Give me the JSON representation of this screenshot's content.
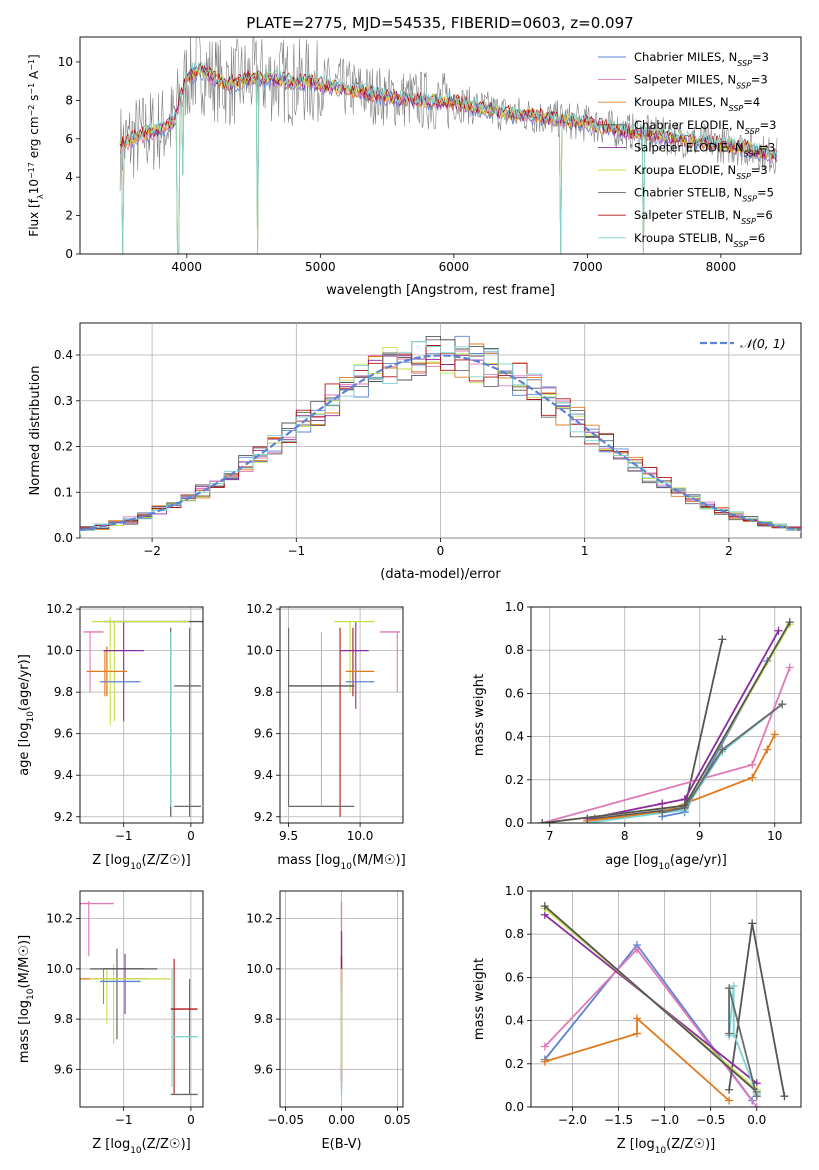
{
  "figure_title": "PLATE=2775, MJD=54535, FIBERID=0603, z=0.097",
  "colors": {
    "chabrier_miles": "#5b84d6",
    "salpeter_miles": "#e07ab7",
    "kroupa_miles": "#e07a1e",
    "chabrier_elodie": "#555555",
    "salpeter_elodie": "#8a2c9c",
    "kroupa_elodie": "#c7e04a",
    "chabrier_stelib": "#6a6a6a",
    "salpeter_stelib": "#b01515",
    "kroupa_stelib": "#7ed4d4",
    "normal_curve": "#5b84d6"
  },
  "chart_data": [
    {
      "id": "spectrum",
      "type": "line",
      "title": "PLATE=2775, MJD=54535, FIBERID=0603, z=0.097",
      "xlabel": "wavelength [Angstrom, rest frame]",
      "ylabel": "Flux [f_λ10^-17 erg cm^-2 s^-1 A^-1]",
      "xlim": [
        3200,
        8600
      ],
      "ylim": [
        0,
        11.3
      ],
      "xticks": [
        4000,
        5000,
        6000,
        7000,
        8000
      ],
      "yticks": [
        0,
        2,
        4,
        6,
        8,
        10
      ],
      "grid": false,
      "legend_position": "top-right",
      "legend": [
        {
          "main": "Chabrier MILES, N",
          "sub": "SSP",
          "tail": "=3",
          "color_key": "chabrier_miles"
        },
        {
          "main": "Salpeter MILES, N",
          "sub": "SSP",
          "tail": "=3",
          "color_key": "salpeter_miles"
        },
        {
          "main": "Kroupa MILES, N",
          "sub": "SSP",
          "tail": "=4",
          "color_key": "kroupa_miles"
        },
        {
          "main": "Chabrier ELODIE, N",
          "sub": "SSP",
          "tail": "=3",
          "color_key": "chabrier_elodie"
        },
        {
          "main": "Salpeter ELODIE, N",
          "sub": "SSP",
          "tail": "=3",
          "color_key": "salpeter_elodie"
        },
        {
          "main": "Kroupa ELODIE, N",
          "sub": "SSP",
          "tail": "=3",
          "color_key": "kroupa_elodie"
        },
        {
          "main": "Chabrier STELIB, N",
          "sub": "SSP",
          "tail": "=5",
          "color_key": "chabrier_stelib"
        },
        {
          "main": "Salpeter STELIB, N",
          "sub": "SSP",
          "tail": "=6",
          "color_key": "salpeter_stelib"
        },
        {
          "main": "Kroupa STELIB, N",
          "sub": "SSP",
          "tail": "=6",
          "color_key": "kroupa_stelib"
        }
      ],
      "model_curve": {
        "x": [
          3500,
          3600,
          3700,
          3800,
          3900,
          4000,
          4100,
          4200,
          4300,
          4400,
          4500,
          4600,
          4700,
          4800,
          4900,
          5000,
          5200,
          5400,
          5600,
          5800,
          6000,
          6200,
          6400,
          6600,
          6800,
          7000,
          7200,
          7400,
          7600,
          7800,
          8000,
          8200,
          8400
        ],
        "y": [
          5.6,
          6.0,
          6.3,
          6.5,
          6.9,
          9.2,
          9.6,
          9.2,
          8.8,
          9.0,
          9.2,
          9.1,
          9.1,
          8.9,
          9.0,
          8.8,
          8.6,
          8.3,
          8.1,
          8.0,
          7.9,
          7.6,
          7.3,
          7.2,
          7.0,
          6.8,
          6.5,
          6.3,
          6.1,
          5.9,
          5.7,
          5.5,
          5.1
        ]
      },
      "absorption_dips": [
        {
          "x": 3520,
          "y": 0
        },
        {
          "x": 3935,
          "y": 0
        },
        {
          "x": 3970,
          "y": 4.1
        },
        {
          "x": 4530,
          "y": 0
        },
        {
          "x": 6800,
          "y": 0
        },
        {
          "x": 7420,
          "y": 0
        }
      ]
    },
    {
      "id": "residuals",
      "type": "step",
      "xlabel": "(data-model)/error",
      "ylabel": "Normed distribution",
      "xlim": [
        -2.5,
        2.5
      ],
      "ylim": [
        0,
        0.47
      ],
      "xticks": [
        -2,
        -1,
        0,
        1,
        2
      ],
      "yticks": [
        0,
        0.1,
        0.2,
        0.3,
        0.4
      ],
      "grid": true,
      "legend_position": "top-right",
      "legend_label": "𝒩(0, 1)",
      "normal_mu": 0,
      "normal_sigma": 1
    },
    {
      "id": "age-vs-Z",
      "type": "errorbar",
      "xlabel": "Z [log10(Z/Z☉)]",
      "ylabel": "age [log10(age/yr)]",
      "xlim": [
        -1.65,
        0.18
      ],
      "ylim": [
        9.17,
        10.21
      ],
      "xticks": [
        -1,
        0
      ],
      "yticks": [
        9.2,
        9.4,
        9.6,
        9.8,
        10.0,
        10.2
      ],
      "grid": true,
      "points": [
        {
          "x": -1.05,
          "xerr": 0.3,
          "y": 9.85,
          "yerr": 0.0,
          "color_key": "chabrier_miles"
        },
        {
          "x": -1.45,
          "xerr": 0.15,
          "y": 10.09,
          "yerr": 0.0,
          "color_key": "salpeter_miles"
        },
        {
          "x": -1.25,
          "xerr": 0.3,
          "y": 9.9,
          "yerr": 0.12,
          "color_key": "kroupa_miles"
        },
        {
          "x": -0.5,
          "xerr": 0.8,
          "y": 10.14,
          "yerr": 0.0,
          "color_key": "chabrier_elodie"
        },
        {
          "x": -1.0,
          "xerr": 0.3,
          "y": 10.0,
          "yerr": 0.0,
          "color_key": "salpeter_elodie"
        },
        {
          "x": -0.75,
          "xerr": 0.72,
          "y": 10.14,
          "yerr": 0.0,
          "color_key": "kroupa_elodie"
        },
        {
          "x": -0.05,
          "xerr": 0.2,
          "y": 9.83,
          "yerr": 0.0,
          "color_key": "chabrier_stelib"
        },
        {
          "x": -0.05,
          "xerr": 0.2,
          "y": 9.25,
          "yerr": 0.0,
          "color_key": "chabrier_stelib"
        },
        {
          "x": -0.3,
          "xerr": 0.0,
          "y": 9.67,
          "yerr": 0.42,
          "color_key": "kroupa_stelib"
        }
      ],
      "vlines": [
        {
          "x": -0.02,
          "y0": 9.2,
          "y1": 10.11,
          "color_key": "chabrier_stelib"
        },
        {
          "x": -1.14,
          "y0": 9.66,
          "y1": 10.14,
          "color_key": "kroupa_elodie"
        },
        {
          "x": -1.0,
          "y0": 9.66,
          "y1": 10.14,
          "color_key": "salpeter_elodie"
        },
        {
          "x": -1.28,
          "y0": 9.78,
          "y1": 10.0,
          "color_key": "kroupa_miles"
        },
        {
          "x": -1.5,
          "y0": 9.8,
          "y1": 10.09,
          "color_key": "salpeter_miles"
        },
        {
          "x": -1.2,
          "y0": 9.64,
          "y1": 10.16,
          "color_key": "kroupa_elodie"
        },
        {
          "x": -0.3,
          "y0": 9.21,
          "y1": 10.09,
          "color_key": "kroupa_stelib"
        },
        {
          "x": -0.3,
          "y0": 9.2,
          "y1": 10.11,
          "color_key": "chabrier_elodie"
        }
      ]
    },
    {
      "id": "age-vs-mass",
      "type": "errorbar",
      "xlabel": "mass [log10(M/M☉)]",
      "ylabel": "",
      "xlim": [
        9.44,
        10.3
      ],
      "ylim": [
        9.17,
        10.21
      ],
      "xticks": [
        9.5,
        10.0
      ],
      "yticks": [
        9.2,
        9.4,
        9.6,
        9.8,
        10.0,
        10.2
      ],
      "grid": true,
      "points": [
        {
          "x": 10.0,
          "xerr": 0.1,
          "y": 9.85,
          "yerr": 0.0,
          "color_key": "chabrier_miles"
        },
        {
          "x": 10.21,
          "xerr": 0.07,
          "y": 10.09,
          "yerr": 0.0,
          "color_key": "salpeter_miles"
        },
        {
          "x": 10.0,
          "xerr": 0.1,
          "y": 9.9,
          "yerr": 0.0,
          "color_key": "kroupa_miles"
        },
        {
          "x": 9.96,
          "xerr": 0.1,
          "y": 10.0,
          "yerr": 0.0,
          "color_key": "salpeter_elodie"
        },
        {
          "x": 9.96,
          "xerr": 0.14,
          "y": 10.14,
          "yerr": 0.0,
          "color_key": "kroupa_elodie"
        },
        {
          "x": 9.73,
          "xerr": 0.23,
          "y": 9.83,
          "yerr": 0.0,
          "color_key": "chabrier_elodie"
        },
        {
          "x": 9.73,
          "xerr": 0.23,
          "y": 9.25,
          "yerr": 0.0,
          "color_key": "chabrier_stelib"
        }
      ],
      "vlines": [
        {
          "x": 9.5,
          "y0": 9.25,
          "y1": 10.11,
          "color_key": "chabrier_stelib"
        },
        {
          "x": 9.73,
          "y0": 9.25,
          "y1": 10.09,
          "color_key": "kroupa_stelib"
        },
        {
          "x": 9.86,
          "y0": 9.2,
          "y1": 10.11,
          "color_key": "salpeter_stelib"
        },
        {
          "x": 9.93,
          "y0": 9.8,
          "y1": 10.14,
          "color_key": "kroupa_elodie"
        },
        {
          "x": 9.95,
          "y0": 9.78,
          "y1": 10.11,
          "color_key": "salpeter_stelib"
        },
        {
          "x": 9.97,
          "y0": 9.72,
          "y1": 10.14,
          "color_key": "salpeter_elodie"
        },
        {
          "x": 10.26,
          "y0": 9.8,
          "y1": 10.09,
          "color_key": "salpeter_miles"
        }
      ]
    },
    {
      "id": "weight-vs-age",
      "type": "line",
      "xlabel": "age [log10(age/yr)]",
      "ylabel": "mass weight",
      "xlim": [
        6.75,
        10.35
      ],
      "ylim": [
        0,
        1
      ],
      "xticks": [
        7,
        8,
        9,
        10
      ],
      "yticks": [
        0,
        0.2,
        0.4,
        0.6,
        0.8,
        1.0
      ],
      "grid": true,
      "series": [
        {
          "color_key": "chabrier_elodie",
          "x": [
            7.6,
            8.8,
            9.3
          ],
          "y": [
            0.02,
            0.07,
            0.85
          ]
        },
        {
          "color_key": "salpeter_miles",
          "x": [
            6.9,
            9.7,
            10.2
          ],
          "y": [
            0.0,
            0.27,
            0.72
          ]
        },
        {
          "color_key": "kroupa_miles",
          "x": [
            7.5,
            8.5,
            9.7,
            9.9,
            10.0
          ],
          "y": [
            0.01,
            0.05,
            0.21,
            0.34,
            0.41
          ]
        },
        {
          "color_key": "chabrier_miles",
          "x": [
            8.5,
            8.8,
            9.9
          ],
          "y": [
            0.03,
            0.05,
            0.75
          ]
        },
        {
          "color_key": "kroupa_stelib",
          "x": [
            7.5,
            8.8,
            9.3,
            10.1
          ],
          "y": [
            0.0,
            0.06,
            0.33,
            0.55
          ]
        },
        {
          "color_key": "chabrier_stelib",
          "x": [
            8.5,
            8.8,
            9.3,
            10.1
          ],
          "y": [
            0.05,
            0.07,
            0.34,
            0.55
          ]
        },
        {
          "color_key": "salpeter_elodie",
          "x": [
            7.5,
            8.5,
            8.8,
            10.05
          ],
          "y": [
            0.02,
            0.09,
            0.11,
            0.89
          ]
        },
        {
          "color_key": "kroupa_elodie",
          "x": [
            6.9,
            8.8,
            10.2
          ],
          "y": [
            0.0,
            0.08,
            0.92
          ]
        },
        {
          "color_key": "chabrier_elodie",
          "x": [
            6.9,
            8.8,
            10.2
          ],
          "y": [
            0.0,
            0.08,
            0.93
          ]
        }
      ]
    },
    {
      "id": "mass-vs-Z",
      "type": "errorbar",
      "xlabel": "Z [log10(Z/Z☉)]",
      "ylabel": "mass [log10(M/M☉)]",
      "xlim": [
        -1.65,
        0.18
      ],
      "ylim": [
        9.45,
        10.31
      ],
      "xticks": [
        -1,
        0
      ],
      "yticks": [
        9.6,
        9.8,
        10.0,
        10.2
      ],
      "grid": true,
      "points": [
        {
          "x": -1.45,
          "xerr": 0.3,
          "y": 10.26,
          "yerr": 0.0,
          "color_key": "salpeter_miles"
        },
        {
          "x": -1.05,
          "xerr": 0.3,
          "y": 9.95,
          "yerr": 0.0,
          "color_key": "chabrier_miles"
        },
        {
          "x": -1.2,
          "xerr": 0.55,
          "y": 9.96,
          "yerr": 0.0,
          "color_key": "kroupa_miles"
        },
        {
          "x": -0.9,
          "xerr": 0.6,
          "y": 9.96,
          "yerr": 0.0,
          "color_key": "kroupa_elodie"
        },
        {
          "x": -1.0,
          "xerr": 0.3,
          "y": 10.0,
          "yerr": 0.0,
          "color_key": "salpeter_elodie"
        },
        {
          "x": -1.0,
          "xerr": 0.5,
          "y": 10.0,
          "yerr": 0.0,
          "color_key": "chabrier_elodie"
        },
        {
          "x": -0.1,
          "xerr": 0.2,
          "y": 9.84,
          "yerr": 0.0,
          "color_key": "salpeter_stelib"
        },
        {
          "x": -0.1,
          "xerr": 0.2,
          "y": 9.73,
          "yerr": 0.0,
          "color_key": "kroupa_stelib"
        },
        {
          "x": -0.1,
          "xerr": 0.2,
          "y": 9.5,
          "yerr": 0.0,
          "color_key": "chabrier_stelib"
        }
      ],
      "vlines": [
        {
          "x": -1.52,
          "y0": 10.05,
          "y1": 10.27,
          "color_key": "salpeter_miles"
        },
        {
          "x": -1.3,
          "y0": 9.86,
          "y1": 10.0,
          "color_key": "kroupa_miles"
        },
        {
          "x": -1.25,
          "y0": 9.78,
          "y1": 10.0,
          "color_key": "kroupa_elodie"
        },
        {
          "x": -1.15,
          "y0": 9.7,
          "y1": 10.02,
          "color_key": "kroupa_elodie"
        },
        {
          "x": -1.1,
          "y0": 9.72,
          "y1": 10.08,
          "color_key": "chabrier_elodie"
        },
        {
          "x": -0.98,
          "y0": 9.82,
          "y1": 10.06,
          "color_key": "salpeter_elodie"
        },
        {
          "x": -0.25,
          "y0": 9.5,
          "y1": 10.04,
          "color_key": "salpeter_stelib"
        },
        {
          "x": -0.28,
          "y0": 9.53,
          "y1": 10.0,
          "color_key": "kroupa_stelib"
        },
        {
          "x": -0.02,
          "y0": 9.5,
          "y1": 9.96,
          "color_key": "chabrier_stelib"
        }
      ]
    },
    {
      "id": "mass-vs-ebv",
      "type": "errorbar",
      "xlabel": "E(B-V)",
      "ylabel": "",
      "xlim": [
        -0.055,
        0.055
      ],
      "ylim": [
        9.45,
        10.31
      ],
      "xticks": [
        -0.05,
        0.0,
        0.05
      ],
      "yticks": [
        9.6,
        9.8,
        10.0,
        10.2
      ],
      "grid": true,
      "points": [
        {
          "x": 0.0,
          "y0": 9.52,
          "y1": 10.27,
          "color_key": "salpeter_miles"
        },
        {
          "x": 0.0,
          "y0": 9.9,
          "y1": 10.15,
          "color_key": "salpeter_elodie"
        },
        {
          "x": 0.0,
          "y0": 9.55,
          "y1": 10.05,
          "color_key": "salpeter_stelib"
        },
        {
          "x": 0.0,
          "y0": 9.5,
          "y1": 9.95,
          "color_key": "kroupa_stelib"
        },
        {
          "x": 0.0,
          "y0": 9.6,
          "y1": 10.0,
          "color_key": "kroupa_elodie"
        }
      ]
    },
    {
      "id": "weight-vs-Z",
      "type": "line",
      "xlabel": "Z [log10(Z/Z☉)]",
      "ylabel": "mass weight",
      "xlim": [
        -2.45,
        0.48
      ],
      "ylim": [
        0,
        1
      ],
      "xticks": [
        -2.0,
        -1.5,
        -1.0,
        -0.5,
        0.0
      ],
      "yticks": [
        0,
        0.2,
        0.4,
        0.6,
        0.8,
        1.0
      ],
      "grid": true,
      "series": [
        {
          "color_key": "chabrier_miles",
          "x": [
            -2.3,
            -1.3,
            -0.05
          ],
          "y": [
            0.22,
            0.75,
            0.03
          ]
        },
        {
          "color_key": "salpeter_miles",
          "x": [
            -2.3,
            -1.3,
            0.0
          ],
          "y": [
            0.28,
            0.73,
            0.0
          ]
        },
        {
          "color_key": "kroupa_miles",
          "x": [
            -2.3,
            -1.3,
            -1.3,
            -0.3
          ],
          "y": [
            0.21,
            0.34,
            0.41,
            0.03
          ]
        },
        {
          "color_key": "chabrier_elodie",
          "x": [
            -0.3,
            -0.05,
            0.3
          ],
          "y": [
            0.08,
            0.85,
            0.05
          ]
        },
        {
          "color_key": "salpeter_elodie",
          "x": [
            -2.3,
            0.0
          ],
          "y": [
            0.89,
            0.11
          ]
        },
        {
          "color_key": "kroupa_elodie",
          "x": [
            -2.3,
            0.0
          ],
          "y": [
            0.92,
            0.08
          ]
        },
        {
          "color_key": "chabrier_elodie",
          "x": [
            -2.3,
            0.0
          ],
          "y": [
            0.93,
            0.07
          ]
        },
        {
          "color_key": "kroupa_stelib",
          "x": [
            -0.3,
            -0.3,
            -0.25,
            -0.25,
            0.0
          ],
          "y": [
            0.55,
            0.33,
            0.56,
            0.34,
            0.06
          ]
        },
        {
          "color_key": "chabrier_stelib",
          "x": [
            -0.3,
            -0.3,
            0.0
          ],
          "y": [
            0.34,
            0.55,
            0.05
          ]
        }
      ]
    }
  ]
}
